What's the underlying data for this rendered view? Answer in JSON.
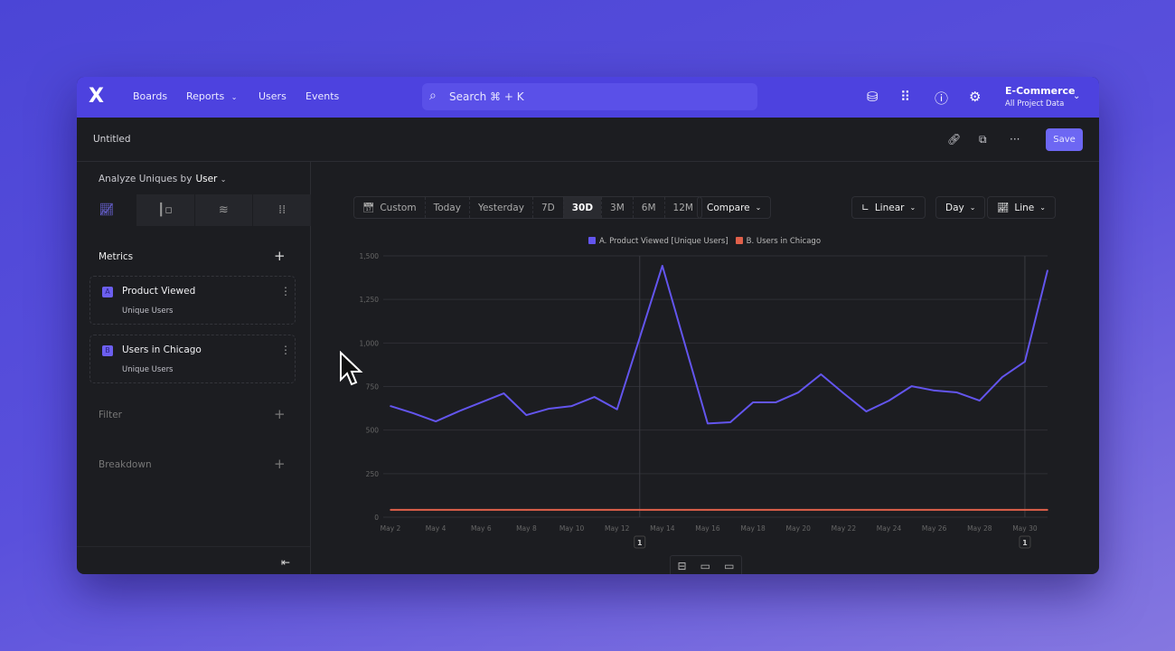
{
  "nav": {
    "logo": "X",
    "items": [
      "Boards",
      "Reports",
      "Users",
      "Events"
    ],
    "search": "Search  ⌘ + K",
    "project": "E-Commerce",
    "project_sub": "All Project Data",
    "icons": [
      "database-settings-icon",
      "apps-grid-icon",
      "help-icon",
      "gear-icon"
    ]
  },
  "header": {
    "title": "Untitled",
    "save": "Save"
  },
  "left": {
    "analyze_label": "Analyze Uniques by",
    "analyze_value": "User",
    "metrics_label": "Metrics",
    "metrics": [
      {
        "letter": "A",
        "name": "Product Viewed",
        "sub": "Unique Users"
      },
      {
        "letter": "B",
        "name": "Users in Chicago",
        "sub": "Unique Users"
      }
    ],
    "filter": "Filter",
    "breakdown": "Breakdown"
  },
  "toolbar": {
    "custom": "Custom",
    "ranges": [
      "Today",
      "Yesterday",
      "7D",
      "30D",
      "3M",
      "6M",
      "12M"
    ],
    "selected": "30D",
    "compare": "Compare",
    "scale": "Linear",
    "interval": "Day",
    "chart_type": "Line"
  },
  "colors": {
    "accent": "#4d42df",
    "seriesA": "#6355ee",
    "seriesB": "#e0604a"
  },
  "chart_data": {
    "type": "line",
    "ylim": [
      0,
      1500
    ],
    "yticks": [
      "0",
      "250",
      "500",
      "750",
      "1,000",
      "1,250",
      "1,500"
    ],
    "ytick_values": [
      0,
      250,
      500,
      750,
      1000,
      1250,
      1500
    ],
    "xticks": [
      "May 2",
      "May 4",
      "May 6",
      "May 8",
      "May 10",
      "May 12",
      "May 14",
      "May 16",
      "May 18",
      "May 20",
      "May 22",
      "May 24",
      "May 26",
      "May 28",
      "May 30"
    ],
    "x": [
      "May 2",
      "May 3",
      "May 4",
      "May 5",
      "May 6",
      "May 7",
      "May 8",
      "May 9",
      "May 10",
      "May 11",
      "May 12",
      "May 13",
      "May 14",
      "May 15",
      "May 16",
      "May 17",
      "May 18",
      "May 19",
      "May 20",
      "May 21",
      "May 22",
      "May 23",
      "May 24",
      "May 25",
      "May 26",
      "May 27",
      "May 28",
      "May 29",
      "May 30",
      "May 31"
    ],
    "series": [
      {
        "name": "A. Product Viewed [Unique Users]",
        "values": [
          638,
          597,
          550,
          607,
          659,
          711,
          586,
          623,
          638,
          690,
          619,
          1030,
          1443,
          990,
          538,
          545,
          659,
          659,
          716,
          820,
          711,
          607,
          669,
          752,
          727,
          716,
          669,
          804,
          893,
          1417
        ]
      },
      {
        "name": "B. Users in Chicago",
        "values": [
          42,
          42,
          42,
          42,
          42,
          42,
          42,
          42,
          42,
          42,
          42,
          42,
          42,
          42,
          42,
          42,
          42,
          42,
          42,
          42,
          42,
          42,
          42,
          42,
          42,
          42,
          42,
          42,
          42,
          42
        ]
      }
    ],
    "annotations": [
      {
        "x": "May 13",
        "label": "1"
      },
      {
        "x": "May 30",
        "label": "1"
      }
    ],
    "grid": true,
    "legend": "top-center"
  }
}
